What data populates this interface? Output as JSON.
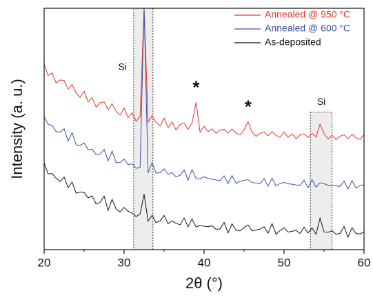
{
  "chart_data": {
    "type": "line",
    "xlabel": "2θ (°)",
    "ylabel": "Intensity (a. u.)",
    "xlim": [
      20,
      60
    ],
    "ylim": [
      0,
      100
    ],
    "xticks": [
      20,
      30,
      40,
      50,
      60
    ],
    "xminorticks": [
      25,
      35,
      45,
      55
    ],
    "legend": "upper right",
    "x": [
      20,
      20.5,
      21,
      21.5,
      22,
      22.5,
      23,
      23.5,
      24,
      24.5,
      25,
      25.5,
      26,
      26.5,
      27,
      27.5,
      28,
      28.5,
      29,
      29.5,
      30,
      30.5,
      31,
      31.5,
      32,
      32.5,
      33,
      33.5,
      34,
      34.5,
      35,
      35.5,
      36,
      36.5,
      37,
      37.5,
      38,
      38.5,
      39,
      39.5,
      40,
      40.5,
      41,
      41.5,
      42,
      42.5,
      43,
      43.5,
      44,
      44.5,
      45,
      45.5,
      46,
      46.5,
      47,
      47.5,
      48,
      48.5,
      49,
      49.5,
      50,
      50.5,
      51,
      51.5,
      52,
      52.5,
      53,
      53.5,
      54,
      54.5,
      55,
      55.5,
      56,
      56.5,
      57,
      57.5,
      58,
      58.5,
      59,
      59.5,
      60
    ],
    "series": [
      {
        "name": "Annealed @ 950 °C",
        "color": "#e8332e",
        "values": [
          77,
          72.1,
          73.2,
          69,
          70.3,
          70.1,
          66.5,
          68.4,
          64.9,
          63,
          65.6,
          61.2,
          62.9,
          59.1,
          60.9,
          61.2,
          58,
          60.4,
          57.3,
          55.7,
          58.7,
          54.7,
          56.7,
          53.2,
          55.2,
          100,
          52.9,
          55.5,
          52.7,
          51.3,
          54.5,
          50.6,
          52.9,
          49.6,
          51.8,
          52.5,
          49.8,
          52.6,
          61,
          48.6,
          51.1,
          48.8,
          50.1,
          48.2,
          49.5,
          49.9,
          48.3,
          50,
          48.3,
          47.6,
          49.6,
          53,
          48.7,
          46.9,
          48.2,
          48.8,
          47.2,
          48.9,
          47.3,
          46.6,
          48.7,
          46.5,
          47.9,
          46,
          47.5,
          48,
          46.5,
          48.2,
          46.7,
          52,
          48.1,
          45.9,
          47.4,
          45.6,
          47,
          47.6,
          46,
          47.8,
          46.3,
          45.7,
          47.7
        ]
      },
      {
        "name": "Annealed @ 600 °C",
        "color": "#3a4fa8",
        "values": [
          55.2,
          51.9,
          51.5,
          48.9,
          48.7,
          50.1,
          45,
          48.5,
          43.4,
          43.2,
          44.2,
          41.4,
          41.6,
          39.4,
          39.6,
          41.5,
          36.8,
          40.8,
          36.1,
          36.1,
          37.5,
          35.2,
          35.6,
          33.7,
          34.1,
          100,
          31.8,
          36,
          31.7,
          31.9,
          33.5,
          31.2,
          31.9,
          30.2,
          30.8,
          33.1,
          28.8,
          33.2,
          29.4,
          29.3,
          30.2,
          29.5,
          29.2,
          28.9,
          28.6,
          30.6,
          27.4,
          30.7,
          27.4,
          28.3,
          28.7,
          29,
          27.8,
          27.6,
          27.3,
          29.5,
          26.3,
          29.6,
          26.4,
          27.4,
          27.9,
          27.3,
          27.1,
          26.8,
          26.7,
          28.8,
          25.7,
          29,
          25.9,
          27.7,
          27.3,
          26.7,
          26.6,
          26.4,
          26.2,
          28.4,
          25.2,
          28.6,
          25.5,
          26.5,
          26.9
        ]
      },
      {
        "name": "As-deposited",
        "color": "#111111",
        "values": [
          35.9,
          31.4,
          31.5,
          29.6,
          28.2,
          30.1,
          25.7,
          28,
          23.4,
          23.9,
          23.7,
          21.4,
          22.3,
          18.9,
          19.6,
          22.2,
          16.3,
          20.8,
          16.8,
          15.6,
          17.5,
          15.9,
          15.1,
          13.7,
          14.8,
          23,
          11.8,
          14.2,
          11.2,
          11.9,
          14.2,
          10.7,
          11.9,
          10.9,
          10.3,
          13.1,
          9.5,
          12.7,
          9.4,
          10,
          9.7,
          9.5,
          9.9,
          8.4,
          8.6,
          11.3,
          6.9,
          10.7,
          8.1,
          7.8,
          9.2,
          10.2,
          7.8,
          8.1,
          8.5,
          9.5,
          6.8,
          10.8,
          6.4,
          7.9,
          9.1,
          7.3,
          7.6,
          8,
          6.7,
          9.3,
          6.9,
          9,
          6.4,
          13,
          7.3,
          7.2,
          7.8,
          6.4,
          6.7,
          9.6,
          5.2,
          9.1,
          6.7,
          6.5,
          7.4
        ]
      }
    ],
    "regions": [
      {
        "label": "Si",
        "x": [
          31.2,
          33.6
        ]
      },
      {
        "label": "Si",
        "x": [
          53.3,
          56
        ],
        "y": [
          0,
          57
        ]
      }
    ],
    "annotations": [
      {
        "text": "*",
        "x": 39
      },
      {
        "text": "*",
        "x": 45.5
      }
    ]
  }
}
